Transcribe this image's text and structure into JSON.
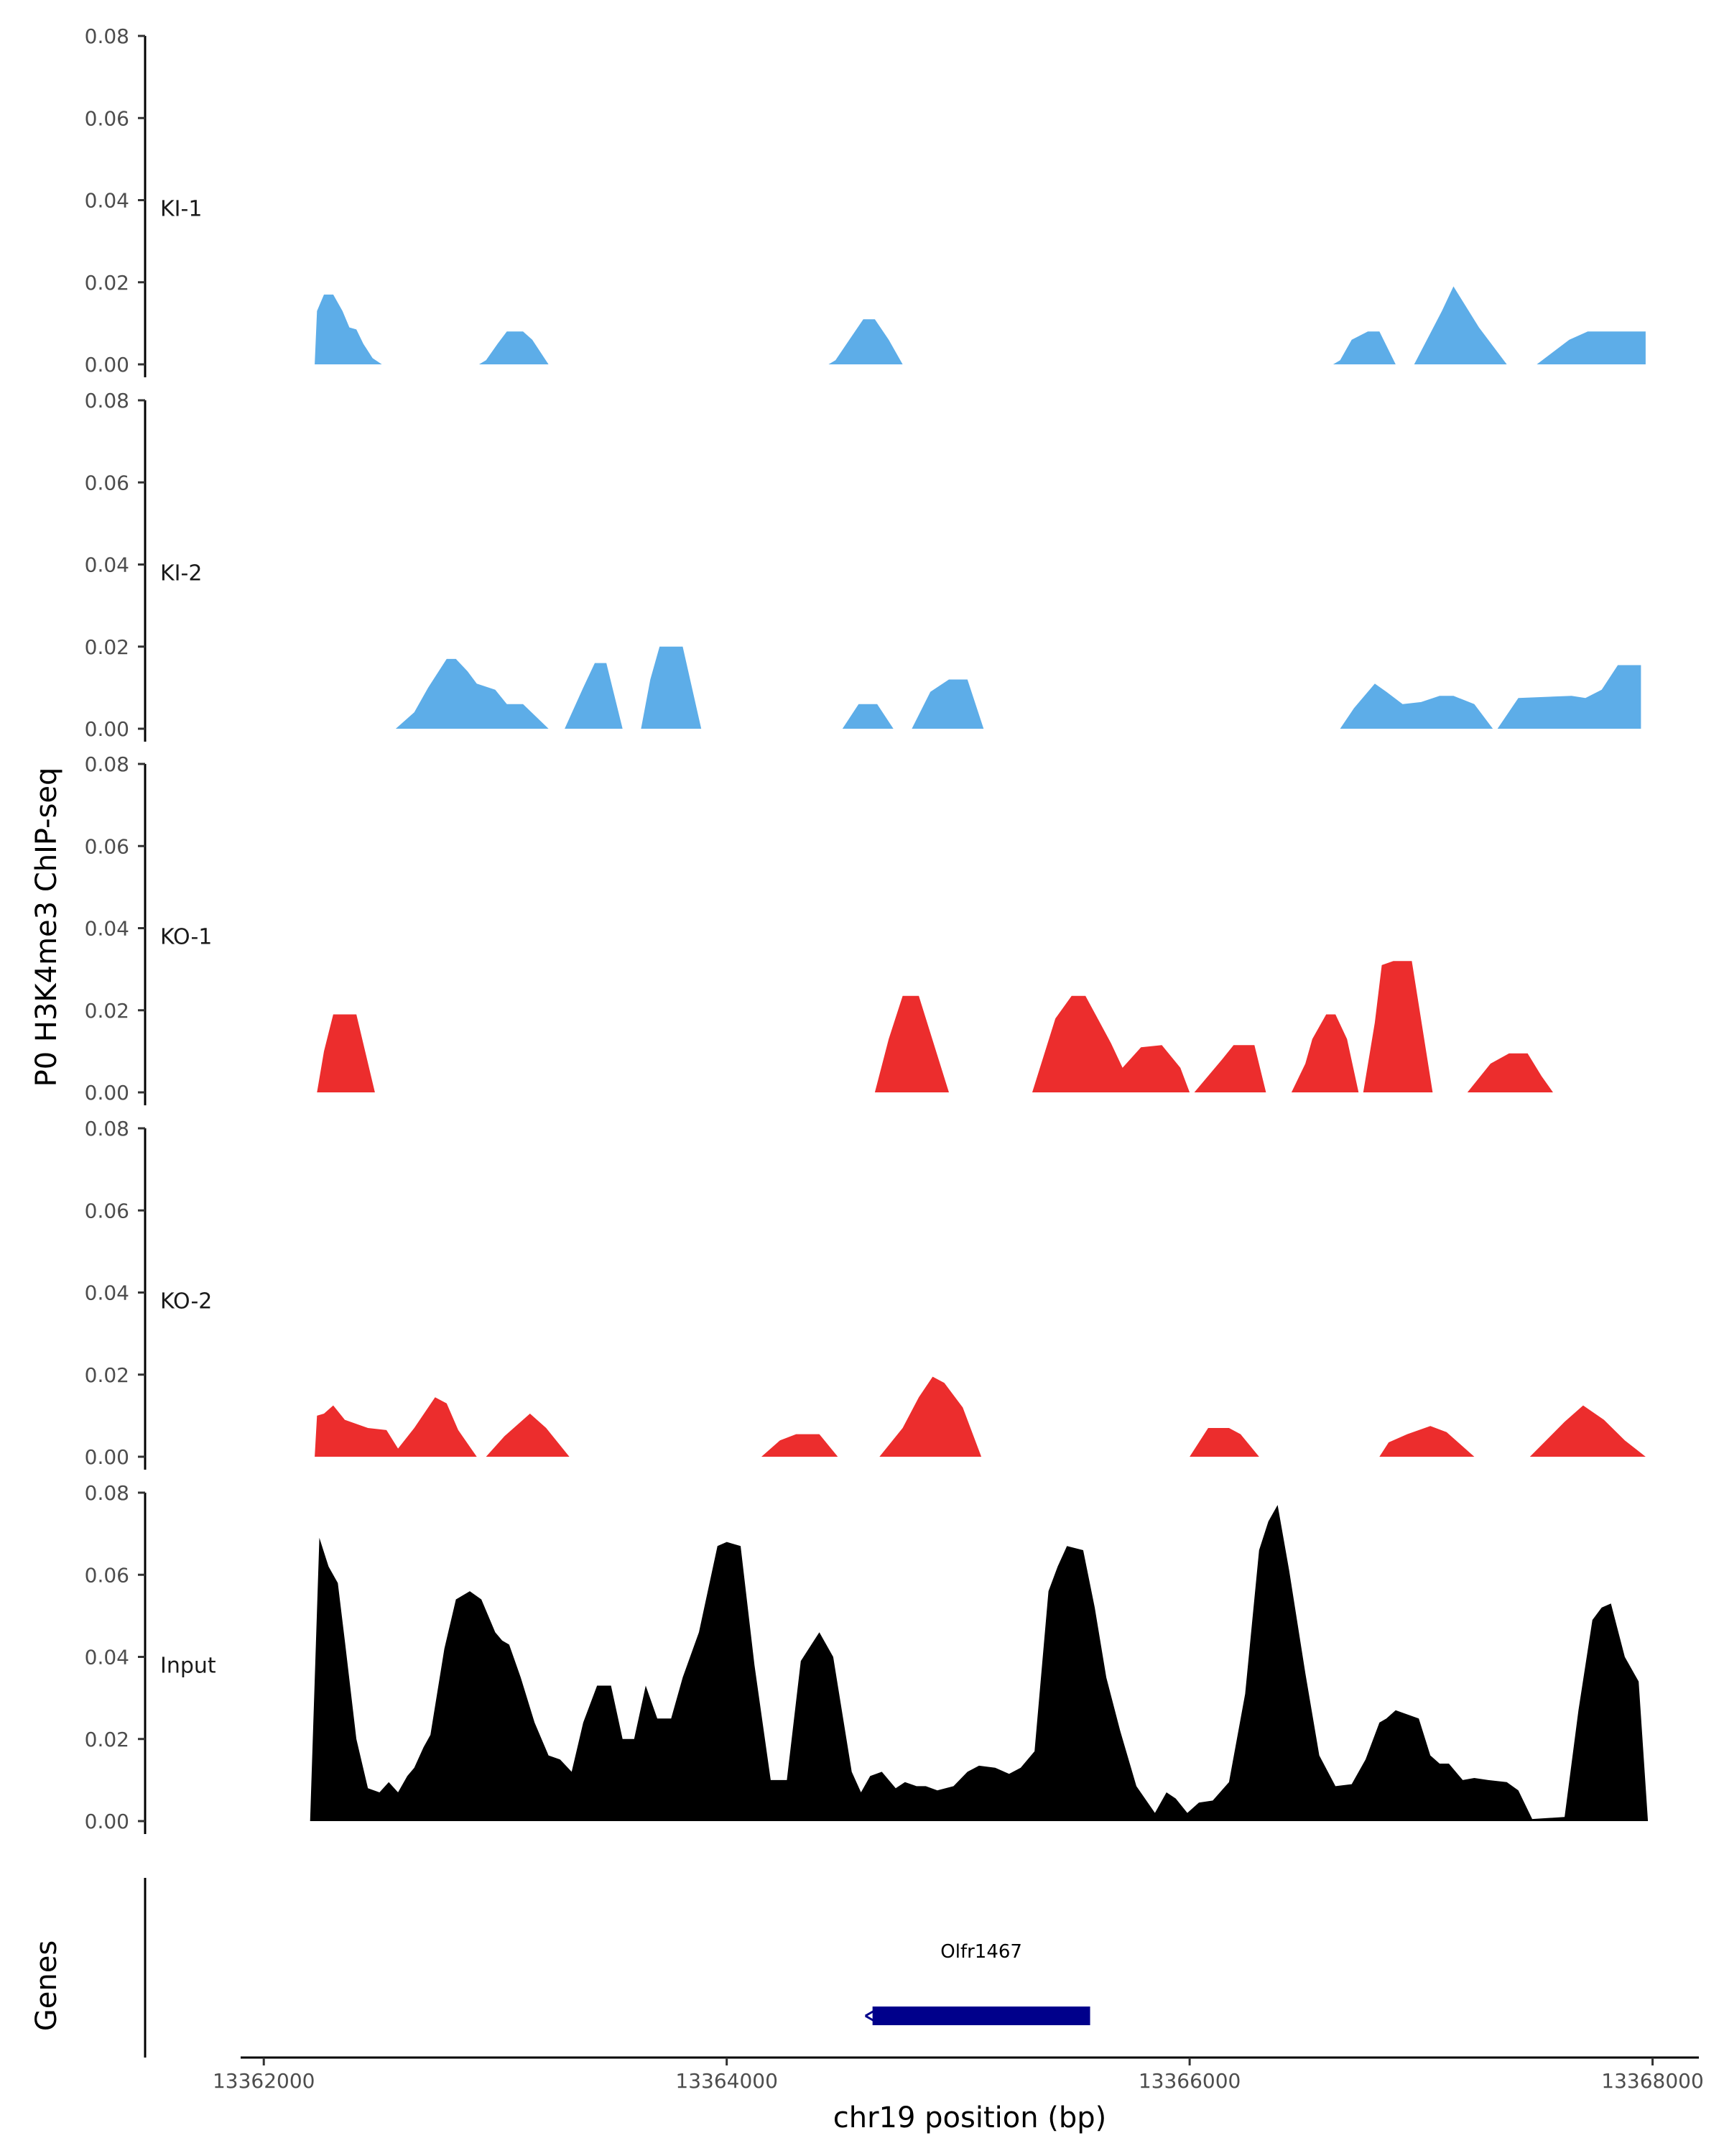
{
  "chart_data": {
    "type": "area",
    "title": "",
    "ylabel": "P0 H3K4me3 ChIP-seq",
    "xlabel": "chr19 position (bp)",
    "xlim": [
      13361900,
      13368200
    ],
    "ylim": [
      0,
      0.08
    ],
    "x_ticks": [
      13362000,
      13364000,
      13366000,
      13368000
    ],
    "x_tick_labels": [
      "13362000",
      "13364000",
      "13366000",
      "13368000"
    ],
    "y_ticks": [
      0,
      0.02,
      0.04,
      0.06,
      0.08
    ],
    "y_tick_labels": [
      "0.00",
      "0.02",
      "0.04",
      "0.06",
      "0.08"
    ],
    "colors": {
      "KI": "#5dade8",
      "KO": "#ec2d2d",
      "Input": "#000000",
      "gene": "#00008b",
      "axis": "#000000"
    },
    "tracks": [
      {
        "name": "KI-1",
        "color": "#5dade8",
        "x": [
          13362220,
          13362230,
          13362260,
          13362300,
          13362340,
          13362370,
          13362400,
          13362430,
          13362470,
          13362510,
          13362930,
          13362960,
          13363010,
          13363050,
          13363120,
          13363160,
          13363230,
          13364440,
          13364470,
          13364530,
          13364590,
          13364640,
          13364700,
          13364760,
          13366620,
          13366650,
          13366700,
          13366770,
          13366820,
          13366890,
          13366970,
          13367090,
          13367140,
          13367250,
          13367370,
          13367500,
          13367640,
          13367720,
          13367860,
          13367970,
          13367970
        ],
        "y": [
          0,
          0.013,
          0.017,
          0.017,
          0.013,
          0.009,
          0.0085,
          0.005,
          0.0015,
          0,
          0,
          0.001,
          0.005,
          0.008,
          0.008,
          0.006,
          0,
          0,
          0.001,
          0.006,
          0.011,
          0.011,
          0.006,
          0,
          0,
          0.001,
          0.006,
          0.008,
          0.008,
          0,
          0,
          0.013,
          0.019,
          0.009,
          0,
          0,
          0.006,
          0.008,
          0.008,
          0.008,
          0
        ]
      },
      {
        "name": "KI-2",
        "color": "#5dade8",
        "x": [
          13362570,
          13362650,
          13362710,
          13362790,
          13362830,
          13362880,
          13362920,
          13363000,
          13363050,
          13363120,
          13363230,
          13363300,
          13363380,
          13363430,
          13363480,
          13363550,
          13363630,
          13363670,
          13363710,
          13363810,
          13363890,
          13364500,
          13364570,
          13364650,
          13364720,
          13364800,
          13364880,
          13364960,
          13365040,
          13365110,
          13366650,
          13366710,
          13366800,
          13366850,
          13366920,
          13367000,
          13367080,
          13367140,
          13367230,
          13367310,
          13367330,
          13367420,
          13367650,
          13367710,
          13367780,
          13367850,
          13367900,
          13367950,
          13367950
        ],
        "y": [
          0,
          0.004,
          0.01,
          0.017,
          0.017,
          0.014,
          0.011,
          0.0095,
          0.006,
          0.006,
          0,
          0,
          0.01,
          0.016,
          0.016,
          0,
          0,
          0.012,
          0.02,
          0.02,
          0,
          0,
          0.006,
          0.006,
          0,
          0,
          0.009,
          0.012,
          0.012,
          0,
          0,
          0.005,
          0.011,
          0.009,
          0.006,
          0.0065,
          0.008,
          0.008,
          0.006,
          0,
          0,
          0.0075,
          0.008,
          0.0075,
          0.0095,
          0.0155,
          0.0155,
          0.0155,
          0
        ],
        "note": "continuous tail segments merged visually"
      },
      {
        "name": "KO-1",
        "color": "#ec2d2d",
        "x": [
          13362230,
          13362260,
          13362300,
          13362400,
          13362480,
          13362520,
          13364640,
          13364700,
          13364760,
          13364830,
          13364960,
          13365320,
          13365420,
          13365490,
          13365550,
          13365660,
          13365710,
          13365790,
          13365880,
          13365960,
          13366000,
          13366020,
          13366140,
          13366190,
          13366280,
          13366330,
          13366440,
          13366500,
          13366530,
          13366590,
          13366630,
          13366680,
          13366730,
          13366750,
          13366800,
          13366830,
          13366880,
          13366960,
          13367050,
          13367200,
          13367300,
          13367380,
          13367460,
          13367520,
          13367570
        ],
        "y": [
          0,
          0.01,
          0.019,
          0.019,
          0.0,
          0,
          0,
          0.013,
          0.0235,
          0.0235,
          0,
          0,
          0.018,
          0.0235,
          0.0235,
          0.012,
          0.006,
          0.011,
          0.0115,
          0.006,
          0,
          0,
          0.008,
          0.0115,
          0.0115,
          0,
          0,
          0.007,
          0.013,
          0.019,
          0.019,
          0.013,
          0,
          0,
          0.017,
          0.031,
          0.032,
          0.032,
          0,
          0,
          0.007,
          0.0095,
          0.0095,
          0.004,
          0
        ]
      },
      {
        "name": "KO-2",
        "color": "#ec2d2d",
        "x": [
          13362220,
          13362230,
          13362260,
          13362300,
          13362350,
          13362450,
          13362530,
          13362580,
          13362650,
          13362740,
          13362790,
          13362840,
          13362920,
          13362960,
          13363040,
          13363150,
          13363220,
          13363320,
          13364150,
          13364230,
          13364300,
          13364400,
          13364480,
          13364660,
          13364760,
          13364830,
          13364890,
          13364940,
          13365020,
          13365100,
          13366000,
          13366080,
          13366170,
          13366220,
          13366300,
          13366820,
          13366860,
          13366940,
          13367040,
          13367110,
          13367230,
          13367470,
          13367620,
          13367700,
          13367790,
          13367880,
          13367970
        ],
        "y": [
          0,
          0.01,
          0.0105,
          0.0125,
          0.009,
          0.007,
          0.0065,
          0.002,
          0.007,
          0.0145,
          0.013,
          0.0065,
          0,
          0,
          0.005,
          0.0105,
          0.007,
          0,
          0,
          0.004,
          0.0055,
          0.0055,
          0,
          0,
          0.007,
          0.0145,
          0.0195,
          0.018,
          0.012,
          0,
          0,
          0.007,
          0.007,
          0.0055,
          0,
          0,
          0.0035,
          0.0055,
          0.0075,
          0.006,
          0,
          0,
          0.0085,
          0.0125,
          0.009,
          0.004,
          0
        ]
      },
      {
        "name": "Input",
        "color": "#000000",
        "x": [
          13362200,
          13362240,
          13362280,
          13362320,
          13362350,
          13362400,
          13362450,
          13362500,
          13362540,
          13362580,
          13362620,
          13362650,
          13362690,
          13362720,
          13362780,
          13362830,
          13362890,
          13362940,
          13363000,
          13363030,
          13363060,
          13363110,
          13363170,
          13363230,
          13363280,
          13363330,
          13363380,
          13363440,
          13363500,
          13363550,
          13363600,
          13363650,
          13363700,
          13363760,
          13363810,
          13363880,
          13363960,
          13364000,
          13364060,
          13364120,
          13364190,
          13364260,
          13364320,
          13364400,
          13364460,
          13364540,
          13364580,
          13364620,
          13364670,
          13364730,
          13364770,
          13364820,
          13364860,
          13364910,
          13364980,
          13365040,
          13365090,
          13365160,
          13365220,
          13365270,
          13365330,
          13365390,
          13365430,
          13365470,
          13365540,
          13365590,
          13365640,
          13365700,
          13365770,
          13365850,
          13365900,
          13365940,
          13365990,
          13366040,
          13366100,
          13366170,
          13366240,
          13366300,
          13366340,
          13366380,
          13366430,
          13366500,
          13366560,
          13366630,
          13366700,
          13366760,
          13366820,
          13366850,
          13366890,
          13366940,
          13366990,
          13367040,
          13367080,
          13367120,
          13367180,
          13367230,
          13367290,
          13367370,
          13367420,
          13367480,
          13367620,
          13367680,
          13367740,
          13367780,
          13367820,
          13367880,
          13367940,
          13367980
        ],
        "y": [
          0,
          0.069,
          0.062,
          0.058,
          0.044,
          0.02,
          0.008,
          0.007,
          0.0095,
          0.007,
          0.011,
          0.013,
          0.018,
          0.021,
          0.042,
          0.054,
          0.056,
          0.054,
          0.046,
          0.044,
          0.043,
          0.035,
          0.024,
          0.016,
          0.015,
          0.012,
          0.024,
          0.033,
          0.033,
          0.02,
          0.02,
          0.033,
          0.025,
          0.025,
          0.035,
          0.046,
          0.067,
          0.068,
          0.067,
          0.038,
          0.01,
          0.01,
          0.039,
          0.046,
          0.04,
          0.012,
          0.007,
          0.011,
          0.012,
          0.008,
          0.0095,
          0.0085,
          0.0085,
          0.0075,
          0.0085,
          0.012,
          0.0135,
          0.013,
          0.0115,
          0.013,
          0.017,
          0.056,
          0.062,
          0.067,
          0.066,
          0.052,
          0.035,
          0.022,
          0.0085,
          0.002,
          0.007,
          0.0055,
          0.002,
          0.0045,
          0.005,
          0.0095,
          0.031,
          0.066,
          0.073,
          0.077,
          0.061,
          0.036,
          0.016,
          0.0085,
          0.009,
          0.015,
          0.024,
          0.025,
          0.027,
          0.026,
          0.025,
          0.016,
          0.014,
          0.014,
          0.01,
          0.0105,
          0.01,
          0.0095,
          0.0075,
          0.0005,
          0.001,
          0.027,
          0.049,
          0.052,
          0.053,
          0.04,
          0.034,
          0
        ]
      }
    ],
    "genes": {
      "label": "Genes",
      "items": [
        {
          "name": "Olfr1467",
          "start": 13364630,
          "end": 13365570,
          "strand": "-"
        }
      ]
    }
  }
}
